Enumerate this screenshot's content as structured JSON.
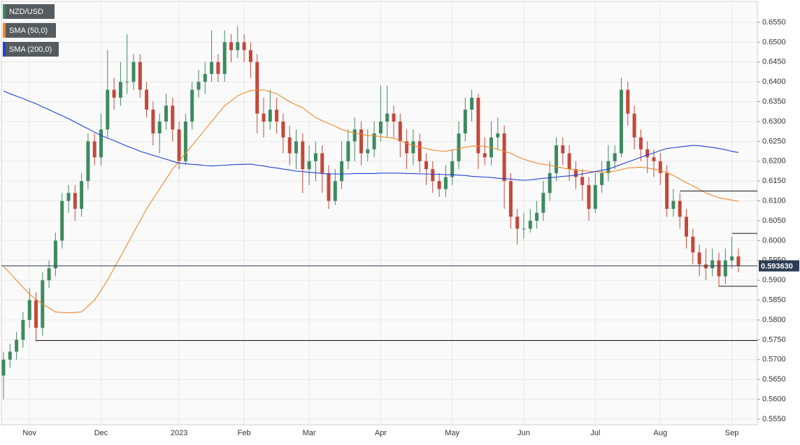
{
  "chart_data": {
    "type": "candlestick",
    "title": "NZD/USD",
    "categories": [
      null,
      null,
      null,
      null,
      "Nov",
      null,
      null,
      null,
      null,
      null,
      null,
      null,
      null,
      null,
      null,
      "Dec",
      null,
      null,
      null,
      null,
      null,
      null,
      null,
      null,
      null,
      null,
      null,
      "2023",
      null,
      null,
      null,
      null,
      null,
      null,
      null,
      null,
      null,
      "Feb",
      null,
      null,
      null,
      null,
      null,
      null,
      null,
      null,
      null,
      "Mar",
      null,
      null,
      null,
      null,
      null,
      null,
      null,
      null,
      null,
      null,
      "Apr",
      null,
      null,
      null,
      null,
      null,
      null,
      null,
      null,
      null,
      null,
      "May",
      null,
      null,
      null,
      null,
      null,
      null,
      null,
      null,
      null,
      null,
      "Jun",
      null,
      null,
      null,
      null,
      null,
      null,
      null,
      null,
      null,
      null,
      "Jul",
      null,
      null,
      null,
      null,
      null,
      null,
      null,
      null,
      null,
      "Aug",
      null,
      null,
      null,
      null,
      null,
      null,
      null,
      null,
      null,
      null,
      "Sep",
      null
    ],
    "open": [
      0.566,
      0.57,
      0.572,
      0.575,
      0.58,
      0.585,
      0.578,
      0.59,
      0.593,
      0.6,
      0.61,
      0.612,
      0.608,
      0.615,
      0.625,
      0.621,
      0.628,
      0.638,
      0.636,
      0.64,
      0.64,
      0.645,
      0.638,
      0.633,
      0.627,
      0.63,
      0.634,
      0.628,
      0.62,
      0.63,
      0.638,
      0.64,
      0.642,
      0.645,
      0.642,
      0.65,
      0.648,
      0.65,
      0.648,
      0.645,
      0.632,
      0.63,
      0.633,
      0.63,
      0.626,
      0.622,
      0.625,
      0.618,
      0.62,
      0.622,
      0.617,
      0.61,
      0.615,
      0.62,
      0.625,
      0.628,
      0.622,
      0.623,
      0.627,
      0.63,
      0.632,
      0.63,
      0.625,
      0.622,
      0.625,
      0.62,
      0.618,
      0.615,
      0.613,
      0.616,
      0.62,
      0.627,
      0.633,
      0.636,
      0.622,
      0.621,
      0.626,
      0.627,
      0.615,
      0.606,
      0.603,
      0.603,
      0.605,
      0.607,
      0.612,
      0.617,
      0.624,
      0.622,
      0.618,
      0.616,
      0.614,
      0.608,
      0.614,
      0.617,
      0.62,
      0.622,
      0.638,
      0.632,
      0.626,
      0.623,
      0.621,
      0.62,
      0.617,
      0.608,
      0.61,
      0.606,
      0.601,
      0.597,
      0.594,
      0.593,
      0.595,
      0.591,
      0.595,
      0.596
    ],
    "high": [
      0.572,
      0.574,
      0.577,
      0.582,
      0.588,
      0.587,
      0.592,
      0.595,
      0.602,
      0.612,
      0.614,
      0.614,
      0.617,
      0.627,
      0.627,
      0.632,
      0.648,
      0.641,
      0.645,
      0.652,
      0.647,
      0.647,
      0.64,
      0.635,
      0.632,
      0.637,
      0.636,
      0.63,
      0.632,
      0.64,
      0.643,
      0.645,
      0.653,
      0.647,
      0.653,
      0.652,
      0.654,
      0.652,
      0.65,
      0.647,
      0.636,
      0.638,
      0.636,
      0.632,
      0.629,
      0.628,
      0.627,
      0.624,
      0.625,
      0.624,
      0.619,
      0.618,
      0.625,
      0.628,
      0.631,
      0.63,
      0.628,
      0.63,
      0.639,
      0.639,
      0.634,
      0.632,
      0.628,
      0.628,
      0.627,
      0.622,
      0.62,
      0.617,
      0.619,
      0.623,
      0.63,
      0.636,
      0.638,
      0.637,
      0.626,
      0.63,
      0.631,
      0.629,
      0.617,
      0.608,
      0.607,
      0.608,
      0.61,
      0.615,
      0.62,
      0.626,
      0.626,
      0.624,
      0.62,
      0.618,
      0.616,
      0.617,
      0.62,
      0.624,
      0.624,
      0.641,
      0.64,
      0.634,
      0.628,
      0.625,
      0.623,
      0.622,
      0.619,
      0.613,
      0.612,
      0.608,
      0.603,
      0.599,
      0.598,
      0.598,
      0.597,
      0.598,
      0.601,
      0.598
    ],
    "low": [
      0.56,
      0.568,
      0.57,
      0.573,
      0.578,
      0.5745,
      0.576,
      0.588,
      0.591,
      0.598,
      0.607,
      0.605,
      0.606,
      0.613,
      0.619,
      0.619,
      0.626,
      0.633,
      0.634,
      0.637,
      0.638,
      0.636,
      0.631,
      0.624,
      0.622,
      0.628,
      0.625,
      0.618,
      0.619,
      0.628,
      0.636,
      0.637,
      0.64,
      0.64,
      0.64,
      0.645,
      0.646,
      0.645,
      0.641,
      0.627,
      0.626,
      0.628,
      0.627,
      0.622,
      0.619,
      0.618,
      0.612,
      0.614,
      0.615,
      0.612,
      0.608,
      0.609,
      0.613,
      0.618,
      0.62,
      0.619,
      0.62,
      0.621,
      0.625,
      0.626,
      0.626,
      0.621,
      0.618,
      0.619,
      0.617,
      0.614,
      0.612,
      0.611,
      0.611,
      0.614,
      0.618,
      0.625,
      0.63,
      0.618,
      0.619,
      0.619,
      0.623,
      0.608,
      0.603,
      0.599,
      0.6005,
      0.602,
      0.603,
      0.605,
      0.61,
      0.615,
      0.619,
      0.615,
      0.613,
      0.61,
      0.605,
      0.607,
      0.612,
      0.615,
      0.618,
      0.621,
      0.629,
      0.623,
      0.62,
      0.617,
      0.616,
      0.614,
      0.606,
      0.606,
      0.603,
      0.598,
      0.594,
      0.591,
      0.59,
      0.591,
      0.5885,
      0.589,
      0.593,
      0.592
    ],
    "close": [
      0.57,
      0.572,
      0.575,
      0.58,
      0.585,
      0.578,
      0.59,
      0.593,
      0.6,
      0.61,
      0.612,
      0.608,
      0.615,
      0.625,
      0.621,
      0.628,
      0.638,
      0.636,
      0.64,
      0.64,
      0.645,
      0.638,
      0.633,
      0.627,
      0.63,
      0.634,
      0.628,
      0.62,
      0.63,
      0.638,
      0.64,
      0.642,
      0.645,
      0.642,
      0.65,
      0.648,
      0.65,
      0.648,
      0.645,
      0.632,
      0.63,
      0.633,
      0.63,
      0.626,
      0.622,
      0.625,
      0.618,
      0.62,
      0.622,
      0.617,
      0.61,
      0.615,
      0.62,
      0.625,
      0.628,
      0.622,
      0.623,
      0.627,
      0.63,
      0.632,
      0.63,
      0.625,
      0.622,
      0.625,
      0.62,
      0.618,
      0.615,
      0.613,
      0.616,
      0.62,
      0.627,
      0.633,
      0.636,
      0.622,
      0.621,
      0.626,
      0.627,
      0.615,
      0.606,
      0.603,
      0.603,
      0.605,
      0.607,
      0.612,
      0.617,
      0.624,
      0.622,
      0.618,
      0.616,
      0.614,
      0.608,
      0.614,
      0.617,
      0.62,
      0.622,
      0.638,
      0.632,
      0.626,
      0.623,
      0.621,
      0.62,
      0.617,
      0.608,
      0.61,
      0.606,
      0.601,
      0.597,
      0.594,
      0.593,
      0.595,
      0.591,
      0.595,
      0.596,
      0.5936
    ],
    "up_color": "#3d8a5f",
    "down_color": "#c4483b",
    "series": [
      {
        "name": "SMA (50,0)",
        "color": "#f0882a",
        "values": [
          0.5935,
          0.5918,
          0.59,
          0.5882,
          0.5865,
          0.5852,
          0.584,
          0.583,
          0.582,
          0.5819,
          0.5818,
          0.5819,
          0.582,
          0.5835,
          0.585,
          0.5875,
          0.59,
          0.593,
          0.596,
          0.599,
          0.602,
          0.605,
          0.608,
          0.6105,
          0.613,
          0.6155,
          0.618,
          0.62,
          0.622,
          0.624,
          0.626,
          0.628,
          0.63,
          0.632,
          0.634,
          0.6352,
          0.6365,
          0.6372,
          0.6378,
          0.6379,
          0.638,
          0.6375,
          0.637,
          0.636,
          0.635,
          0.6342,
          0.6335,
          0.6322,
          0.631,
          0.6302,
          0.6295,
          0.6288,
          0.628,
          0.6275,
          0.627,
          0.6268,
          0.6265,
          0.6264,
          0.6262,
          0.626,
          0.6258,
          0.6252,
          0.6245,
          0.624,
          0.6235,
          0.6232,
          0.6228,
          0.6226,
          0.6225,
          0.6228,
          0.6232,
          0.6235,
          0.6238,
          0.6238,
          0.6238,
          0.6234,
          0.623,
          0.6225,
          0.622,
          0.6212,
          0.6205,
          0.62,
          0.6195,
          0.6192,
          0.619,
          0.6186,
          0.6183,
          0.618,
          0.6178,
          0.6176,
          0.6175,
          0.6173,
          0.6172,
          0.6173,
          0.6175,
          0.6179,
          0.6183,
          0.6184,
          0.6185,
          0.6183,
          0.618,
          0.6176,
          0.6172,
          0.6164,
          0.6155,
          0.6146,
          0.6138,
          0.6129,
          0.612,
          0.6114,
          0.6108,
          0.6105,
          0.6102,
          0.6099
        ]
      },
      {
        "name": "SMA (200,0)",
        "color": "#1f3fd6",
        "values": [
          0.6377,
          0.637,
          0.6364,
          0.6358,
          0.6351,
          0.6345,
          0.6337,
          0.633,
          0.6322,
          0.6315,
          0.6307,
          0.6299,
          0.629,
          0.6282,
          0.6273,
          0.6265,
          0.6258,
          0.6252,
          0.6245,
          0.6238,
          0.6232,
          0.6225,
          0.622,
          0.6215,
          0.621,
          0.6205,
          0.62,
          0.6195,
          0.6194,
          0.6192,
          0.6191,
          0.6189,
          0.6188,
          0.6189,
          0.619,
          0.6191,
          0.6192,
          0.6192,
          0.6193,
          0.619,
          0.6188,
          0.6185,
          0.6183,
          0.618,
          0.6178,
          0.6175,
          0.6174,
          0.6172,
          0.6171,
          0.6169,
          0.6168,
          0.6168,
          0.6168,
          0.6168,
          0.6169,
          0.6169,
          0.6169,
          0.6169,
          0.617,
          0.617,
          0.617,
          0.617,
          0.6169,
          0.6169,
          0.6168,
          0.6168,
          0.6167,
          0.6167,
          0.6166,
          0.6166,
          0.6165,
          0.6164,
          0.6162,
          0.6161,
          0.616,
          0.6159,
          0.6157,
          0.6156,
          0.6155,
          0.6153,
          0.6152,
          0.6153,
          0.6155,
          0.6157,
          0.6158,
          0.616,
          0.6162,
          0.6163,
          0.6165,
          0.6168,
          0.6171,
          0.6174,
          0.6177,
          0.618,
          0.6186,
          0.6192,
          0.6198,
          0.6204,
          0.621,
          0.6216,
          0.6221,
          0.6227,
          0.6232,
          0.6234,
          0.6236,
          0.6238,
          0.624,
          0.6239,
          0.6237,
          0.6235,
          0.6232,
          0.6229,
          0.6225,
          0.6222
        ]
      }
    ],
    "ylim": [
      0.55359,
      0.66063
    ],
    "yticks": [
      {
        "value": 0.555,
        "label": "0.5550"
      },
      {
        "value": 0.56,
        "label": "0.5600"
      },
      {
        "value": 0.565,
        "label": "0.5650"
      },
      {
        "value": 0.57,
        "label": "0.5700"
      },
      {
        "value": 0.575,
        "label": "0.5750"
      },
      {
        "value": 0.58,
        "label": "0.5800"
      },
      {
        "value": 0.585,
        "label": "0.5850"
      },
      {
        "value": 0.59,
        "label": "0.5900"
      },
      {
        "value": 0.595,
        "label": "0.5950"
      },
      {
        "value": 0.6,
        "label": "0.6000"
      },
      {
        "value": 0.605,
        "label": "0.6050"
      },
      {
        "value": 0.61,
        "label": "0.6100"
      },
      {
        "value": 0.615,
        "label": "0.6150"
      },
      {
        "value": 0.62,
        "label": "0.6200"
      },
      {
        "value": 0.625,
        "label": "0.6250"
      },
      {
        "value": 0.63,
        "label": "0.6300"
      },
      {
        "value": 0.635,
        "label": "0.6350"
      },
      {
        "value": 0.64,
        "label": "0.6400"
      },
      {
        "value": 0.645,
        "label": "0.6450"
      },
      {
        "value": 0.65,
        "label": "0.6500"
      },
      {
        "value": 0.655,
        "label": "0.6550"
      }
    ],
    "grid": true,
    "last_price": {
      "value": 0.59363,
      "label": "0.593630"
    },
    "levels": [
      {
        "value": 0.5748,
        "start": 5
      },
      {
        "value": 0.6125,
        "start": 104
      },
      {
        "value": 0.6018,
        "start": 112
      },
      {
        "value": 0.5885,
        "start": 110
      }
    ]
  }
}
